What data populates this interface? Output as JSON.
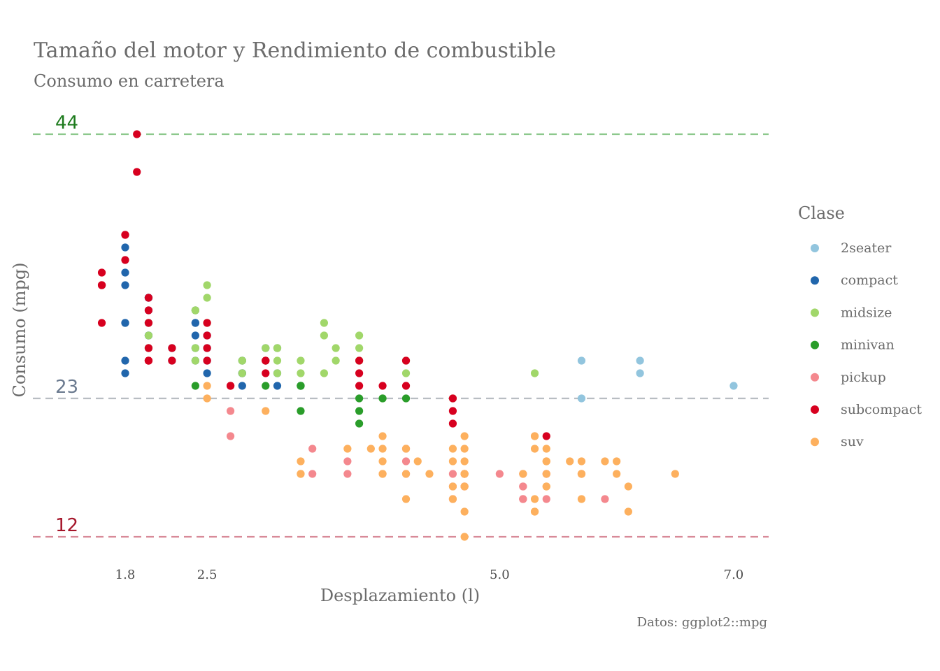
{
  "chart_data": {
    "type": "scatter",
    "title": "Tamaño del motor y Rendimiento de combustible",
    "subtitle": "Consumo en carretera",
    "xlabel": "Desplazamiento (l)",
    "ylabel": "Consumo (mpg)",
    "caption": "Datos: ggplot2::mpg",
    "xlim": [
      1.4,
      7.3
    ],
    "ylim": [
      11,
      45
    ],
    "x_ticks": [
      "1.8",
      "2.5",
      "5.0",
      "7.0"
    ],
    "grid": false,
    "legend": {
      "title": "Clase",
      "position": "right",
      "items": [
        {
          "name": "2seater",
          "color": "#92C5DE"
        },
        {
          "name": "compact",
          "color": "#2166AC"
        },
        {
          "name": "midsize",
          "color": "#A1D76A"
        },
        {
          "name": "minivan",
          "color": "#2A9D2A"
        },
        {
          "name": "pickup",
          "color": "#F4888E"
        },
        {
          "name": "subcompact",
          "color": "#D7001F"
        },
        {
          "name": "suv",
          "color": "#FDB05E"
        }
      ]
    },
    "reference_lines": [
      {
        "value": 44,
        "label": "44",
        "color": "#8CC88C",
        "text_color": "#1E7B1E"
      },
      {
        "value": 23,
        "label": "23",
        "color": "#B8BDC2",
        "text_color": "#6B7A8F"
      },
      {
        "value": 12,
        "label": "12",
        "color": "#D88A98",
        "text_color": "#A5162B"
      }
    ],
    "series": [
      {
        "name": "2seater",
        "points": [
          [
            5.7,
            26
          ],
          [
            5.7,
            23
          ],
          [
            6.2,
            26
          ],
          [
            6.2,
            25
          ],
          [
            7.0,
            24
          ]
        ]
      },
      {
        "name": "compact",
        "points": [
          [
            1.8,
            29
          ],
          [
            1.8,
            29
          ],
          [
            2.0,
            31
          ],
          [
            2.0,
            30
          ],
          [
            2.8,
            26
          ],
          [
            2.8,
            26
          ],
          [
            3.1,
            27
          ],
          [
            1.8,
            26
          ],
          [
            1.8,
            25
          ],
          [
            2.0,
            28
          ],
          [
            2.0,
            27
          ],
          [
            2.8,
            25
          ],
          [
            2.8,
            25
          ],
          [
            3.1,
            25
          ],
          [
            2.2,
            27
          ],
          [
            2.2,
            26
          ],
          [
            2.4,
            29
          ],
          [
            2.4,
            27
          ],
          [
            3.0,
            26
          ],
          [
            3.0,
            27
          ],
          [
            3.3,
            24
          ],
          [
            1.8,
            33
          ],
          [
            1.8,
            32
          ],
          [
            1.8,
            35
          ],
          [
            2.0,
            28
          ],
          [
            2.0,
            29
          ],
          [
            2.5,
            27
          ],
          [
            2.5,
            28
          ],
          [
            2.5,
            26
          ],
          [
            2.5,
            25
          ],
          [
            2.0,
            31
          ],
          [
            2.0,
            31
          ],
          [
            2.4,
            30
          ],
          [
            2.4,
            26
          ],
          [
            2.4,
            29
          ],
          [
            2.4,
            28
          ],
          [
            2.8,
            25
          ],
          [
            2.8,
            24
          ],
          [
            3.1,
            24
          ]
        ]
      },
      {
        "name": "midsize",
        "points": [
          [
            2.8,
            26
          ],
          [
            3.1,
            25
          ],
          [
            4.2,
            25
          ],
          [
            2.4,
            26
          ],
          [
            2.4,
            27
          ],
          [
            3.1,
            27
          ],
          [
            3.5,
            28
          ],
          [
            3.6,
            27
          ],
          [
            2.4,
            30
          ],
          [
            3.0,
            27
          ],
          [
            3.0,
            26
          ],
          [
            3.5,
            29
          ],
          [
            3.8,
            27
          ],
          [
            3.8,
            26
          ],
          [
            3.8,
            28
          ],
          [
            5.3,
            25
          ],
          [
            2.0,
            29
          ],
          [
            2.0,
            28
          ],
          [
            2.0,
            27
          ],
          [
            2.5,
            29
          ],
          [
            2.5,
            31
          ],
          [
            2.5,
            32
          ],
          [
            3.3,
            26
          ],
          [
            3.3,
            25
          ],
          [
            4.0,
            23
          ],
          [
            4.6,
            23
          ],
          [
            3.5,
            25
          ],
          [
            3.6,
            26
          ],
          [
            2.4,
            30
          ],
          [
            2.8,
            25
          ],
          [
            2.8,
            26
          ],
          [
            3.1,
            27
          ],
          [
            3.1,
            26
          ],
          [
            3.8,
            26
          ],
          [
            4.2,
            26
          ]
        ]
      },
      {
        "name": "minivan",
        "points": [
          [
            2.4,
            24
          ],
          [
            3.0,
            24
          ],
          [
            3.3,
            22
          ],
          [
            3.3,
            24
          ],
          [
            3.8,
            22
          ],
          [
            3.8,
            21
          ],
          [
            3.8,
            23
          ],
          [
            4.0,
            23
          ],
          [
            4.2,
            23
          ],
          [
            3.3,
            24
          ],
          [
            3.3,
            24
          ]
        ]
      },
      {
        "name": "pickup",
        "points": [
          [
            2.7,
            20
          ],
          [
            2.7,
            22
          ],
          [
            3.4,
            19
          ],
          [
            3.4,
            17
          ],
          [
            3.7,
            18
          ],
          [
            3.7,
            17
          ],
          [
            4.2,
            17
          ],
          [
            4.2,
            18
          ],
          [
            4.2,
            19
          ],
          [
            4.7,
            17
          ],
          [
            4.7,
            17
          ],
          [
            4.7,
            16
          ],
          [
            4.7,
            16
          ],
          [
            4.7,
            17
          ],
          [
            5.2,
            15
          ],
          [
            5.2,
            15
          ],
          [
            5.2,
            17
          ],
          [
            5.7,
            17
          ],
          [
            5.9,
            15
          ],
          [
            4.6,
            16
          ],
          [
            5.2,
            16
          ],
          [
            5.4,
            15
          ],
          [
            5.4,
            17
          ],
          [
            5.0,
            17
          ],
          [
            5.4,
            17
          ],
          [
            4.6,
            17
          ],
          [
            4.6,
            15
          ],
          [
            5.2,
            15
          ],
          [
            5.2,
            16
          ],
          [
            4.7,
            17
          ]
        ]
      },
      {
        "name": "subcompact",
        "points": [
          [
            1.6,
            33
          ],
          [
            1.6,
            32
          ],
          [
            1.6,
            32
          ],
          [
            1.6,
            29
          ],
          [
            1.6,
            32
          ],
          [
            1.8,
            34
          ],
          [
            1.8,
            36
          ],
          [
            1.8,
            36
          ],
          [
            2.0,
            29
          ],
          [
            2.0,
            26
          ],
          [
            2.0,
            27
          ],
          [
            2.0,
            30
          ],
          [
            2.0,
            31
          ],
          [
            2.0,
            26
          ],
          [
            2.0,
            26
          ],
          [
            2.2,
            27
          ],
          [
            2.2,
            26
          ],
          [
            2.5,
            26
          ],
          [
            2.5,
            27
          ],
          [
            2.5,
            28
          ],
          [
            2.5,
            29
          ],
          [
            3.0,
            26
          ],
          [
            3.0,
            26
          ],
          [
            3.0,
            25
          ],
          [
            3.8,
            26
          ],
          [
            3.8,
            25
          ],
          [
            3.8,
            24
          ],
          [
            4.0,
            24
          ],
          [
            4.2,
            26
          ],
          [
            4.2,
            24
          ],
          [
            4.6,
            22
          ],
          [
            4.6,
            23
          ],
          [
            4.6,
            21
          ],
          [
            5.4,
            20
          ],
          [
            2.7,
            24
          ],
          [
            2.7,
            24
          ],
          [
            1.9,
            41
          ],
          [
            1.9,
            44
          ]
        ]
      },
      {
        "name": "suv",
        "points": [
          [
            5.7,
            17
          ],
          [
            6.1,
            16
          ],
          [
            5.3,
            20
          ],
          [
            5.3,
            19
          ],
          [
            5.7,
            17
          ],
          [
            6.5,
            17
          ],
          [
            5.3,
            20
          ],
          [
            5.3,
            15
          ],
          [
            5.3,
            14
          ],
          [
            4.7,
            17
          ],
          [
            4.7,
            19
          ],
          [
            4.7,
            16
          ],
          [
            4.7,
            17
          ],
          [
            4.7,
            12
          ],
          [
            5.2,
            17
          ],
          [
            5.7,
            15
          ],
          [
            5.9,
            18
          ],
          [
            6.0,
            17
          ],
          [
            4.0,
            17
          ],
          [
            4.0,
            19
          ],
          [
            4.6,
            18
          ],
          [
            5.4,
            18
          ],
          [
            5.4,
            16
          ],
          [
            4.2,
            15
          ],
          [
            4.2,
            17
          ],
          [
            5.4,
            18
          ],
          [
            5.4,
            17
          ],
          [
            3.7,
            19
          ],
          [
            4.0,
            17
          ],
          [
            4.0,
            18
          ],
          [
            4.3,
            18
          ],
          [
            4.4,
            17
          ],
          [
            3.3,
            17
          ],
          [
            3.9,
            19
          ],
          [
            4.7,
            20
          ],
          [
            4.7,
            18
          ],
          [
            5.4,
            16
          ],
          [
            5.6,
            18
          ],
          [
            5.7,
            18
          ],
          [
            4.0,
            20
          ],
          [
            4.2,
            19
          ],
          [
            4.6,
            19
          ],
          [
            3.3,
            17
          ],
          [
            2.5,
            24
          ],
          [
            2.5,
            23
          ],
          [
            4.7,
            14
          ],
          [
            5.3,
            14
          ],
          [
            6.1,
            14
          ],
          [
            3.0,
            22
          ],
          [
            3.3,
            18
          ],
          [
            4.6,
            15
          ],
          [
            4.6,
            16
          ],
          [
            5.4,
            19
          ],
          [
            6.0,
            18
          ]
        ]
      }
    ]
  }
}
